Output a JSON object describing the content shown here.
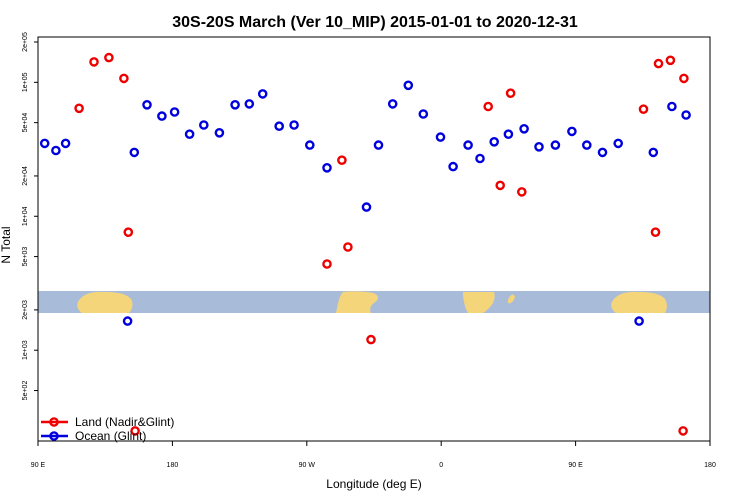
{
  "chart_data": {
    "type": "scatter",
    "title": "30S-20S March (Ver 10_MIP)   2015-01-01 to 2020-12-31",
    "xlabel": "Longitude (deg E)",
    "ylabel": "N Total",
    "x_ticks": [
      {
        "value": 90,
        "label": "90 E"
      },
      {
        "value": 180,
        "label": "180"
      },
      {
        "value": 270,
        "label": "90 W"
      },
      {
        "value": 360,
        "label": "0"
      },
      {
        "value": 450,
        "label": "90 E"
      },
      {
        "value": 540,
        "label": "180"
      }
    ],
    "xlim": [
      90,
      540
    ],
    "y_scale": "log",
    "y_ticks": [
      {
        "value": 500,
        "label": "5e+02"
      },
      {
        "value": 1000,
        "label": "1e+03"
      },
      {
        "value": 2000,
        "label": "2e+03"
      },
      {
        "value": 5000,
        "label": "5e+03"
      },
      {
        "value": 10000,
        "label": "1e+04"
      },
      {
        "value": 20000,
        "label": "2e+04"
      },
      {
        "value": 50000,
        "label": "5e+04"
      },
      {
        "value": 100000,
        "label": "1e+05"
      },
      {
        "value": 200000,
        "label": "2e+05"
      }
    ],
    "ylim": [
      210,
      200000
    ],
    "legend_position": "bottom-left",
    "series": [
      {
        "name": "Land (Nadir&Glint)",
        "color": "#ee0000",
        "points": [
          [
            117.5,
            64000
          ],
          [
            127.5,
            142000
          ],
          [
            137.5,
            153000
          ],
          [
            147.5,
            107000
          ],
          [
            150.5,
            7600
          ],
          [
            155,
            250
          ],
          [
            293.5,
            26200
          ],
          [
            283.5,
            4400
          ],
          [
            297.5,
            5900
          ],
          [
            313,
            1200
          ],
          [
            391.5,
            66000
          ],
          [
            406.5,
            83000
          ],
          [
            399.5,
            17000
          ],
          [
            414,
            15200
          ],
          [
            495.5,
            63000
          ],
          [
            503.5,
            7600
          ],
          [
            505.5,
            138000
          ],
          [
            513.5,
            146000
          ],
          [
            522.5,
            107000
          ],
          [
            522,
            250
          ]
        ]
      },
      {
        "name": "Ocean (Glint)",
        "color": "#0000dd",
        "points": [
          [
            94.5,
            35000
          ],
          [
            102,
            31000
          ],
          [
            108.5,
            35000
          ],
          [
            150,
            1650
          ],
          [
            154.5,
            30000
          ],
          [
            163,
            68000
          ],
          [
            173,
            56000
          ],
          [
            181.5,
            60000
          ],
          [
            191.5,
            41000
          ],
          [
            201,
            48000
          ],
          [
            211.5,
            42000
          ],
          [
            222,
            68000
          ],
          [
            231.5,
            69000
          ],
          [
            240.5,
            82000
          ],
          [
            251.5,
            47000
          ],
          [
            261.5,
            48000
          ],
          [
            272,
            34000
          ],
          [
            283.5,
            23000
          ],
          [
            310,
            11700
          ],
          [
            318,
            34000
          ],
          [
            327.5,
            69000
          ],
          [
            338,
            95000
          ],
          [
            348,
            58000
          ],
          [
            359.5,
            39000
          ],
          [
            368,
            23500
          ],
          [
            378,
            34000
          ],
          [
            386,
            27000
          ],
          [
            395.5,
            36000
          ],
          [
            405,
            41000
          ],
          [
            415.5,
            45000
          ],
          [
            425.5,
            33000
          ],
          [
            436.5,
            34000
          ],
          [
            447.5,
            43000
          ],
          [
            457.5,
            34000
          ],
          [
            468,
            30000
          ],
          [
            478.5,
            35000
          ],
          [
            492.5,
            1650
          ],
          [
            502,
            30000
          ],
          [
            514.5,
            66000
          ],
          [
            524,
            57000
          ]
        ]
      }
    ]
  }
}
